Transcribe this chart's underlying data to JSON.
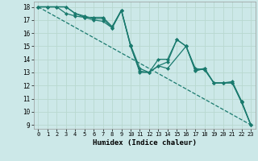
{
  "title": "",
  "xlabel": "Humidex (Indice chaleur)",
  "background_color": "#cce8e8",
  "grid_color": "#b8d8d0",
  "line_color": "#1a7a6e",
  "xlim": [
    -0.5,
    23.5
  ],
  "ylim": [
    8.7,
    18.4
  ],
  "yticks": [
    9,
    10,
    11,
    12,
    13,
    14,
    15,
    16,
    17,
    18
  ],
  "xticks": [
    0,
    1,
    2,
    3,
    4,
    5,
    6,
    7,
    8,
    9,
    10,
    11,
    12,
    13,
    14,
    15,
    16,
    17,
    18,
    19,
    20,
    21,
    22,
    23
  ],
  "series": [
    {
      "x": [
        0,
        1,
        2,
        3,
        4,
        5,
        6,
        7,
        8,
        9,
        10,
        11,
        12,
        13,
        14,
        15,
        16,
        17,
        18,
        19,
        20,
        21,
        22,
        23
      ],
      "y": [
        18.0,
        18.0,
        18.0,
        18.0,
        17.5,
        17.2,
        17.2,
        17.2,
        16.5,
        17.75,
        15.1,
        13.3,
        13.0,
        13.5,
        13.8,
        15.5,
        15.0,
        13.2,
        13.3,
        12.2,
        12.2,
        12.3,
        10.8,
        9.0
      ],
      "marker": "D",
      "markersize": 2.0,
      "linewidth": 0.9,
      "linestyle": "-"
    },
    {
      "x": [
        0,
        1,
        2,
        3,
        4,
        5,
        6,
        7,
        8,
        9,
        10,
        11,
        12,
        13,
        14,
        15,
        16,
        17,
        18,
        19,
        20,
        21,
        22,
        23
      ],
      "y": [
        18.0,
        18.0,
        18.0,
        17.5,
        17.3,
        17.2,
        17.0,
        16.9,
        16.4,
        17.75,
        15.0,
        13.0,
        13.0,
        14.0,
        14.0,
        15.5,
        15.0,
        13.3,
        13.2,
        12.2,
        12.2,
        12.2,
        10.7,
        9.0
      ],
      "marker": "D",
      "markersize": 2.0,
      "linewidth": 0.9,
      "linestyle": "-"
    },
    {
      "x": [
        0,
        3,
        4,
        5,
        6,
        7,
        8,
        9,
        10,
        11,
        12,
        13,
        14,
        16,
        17,
        18,
        19,
        20,
        21,
        22,
        23
      ],
      "y": [
        18.0,
        18.0,
        17.5,
        17.3,
        17.1,
        17.1,
        16.4,
        17.7,
        15.0,
        13.1,
        13.0,
        13.5,
        13.3,
        15.0,
        13.1,
        13.3,
        12.2,
        12.2,
        12.2,
        10.8,
        9.0
      ],
      "marker": "D",
      "markersize": 2.0,
      "linewidth": 0.9,
      "linestyle": "-"
    },
    {
      "x": [
        0,
        23
      ],
      "y": [
        18.0,
        9.0
      ],
      "marker": null,
      "markersize": 0,
      "linewidth": 0.9,
      "linestyle": "--"
    }
  ]
}
